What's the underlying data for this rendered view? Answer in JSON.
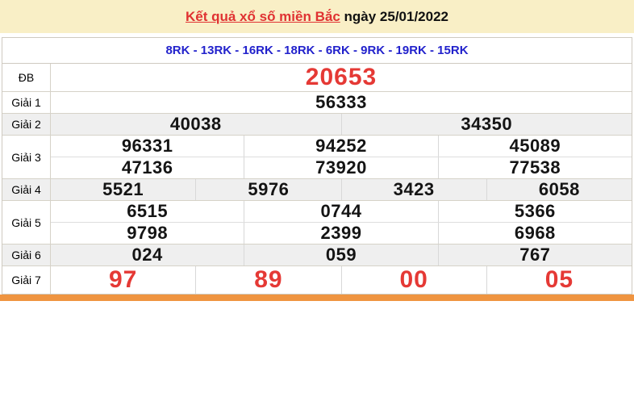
{
  "page": {
    "accent_bar_color": "#ef9440",
    "background": "#ffffff"
  },
  "header": {
    "title_link": "Kết quả xổ số miền Bắc",
    "date_text": " ngày 25/01/2022",
    "bg": "#f9efc6",
    "link_color": "#e03232"
  },
  "draw_codes": {
    "text": "8RK - 13RK - 16RK - 18RK - 6RK - 9RK - 19RK - 15RK",
    "color": "#2222cc"
  },
  "table": {
    "highlight_color": "#e53935",
    "shaded_row_bg": "#efefef",
    "rows": [
      {
        "id": "db",
        "label": "ĐB",
        "style": "special",
        "shaded": false,
        "groups": [
          [
            "20653"
          ]
        ]
      },
      {
        "id": "g1",
        "label": "Giải 1",
        "style": "normal",
        "shaded": false,
        "groups": [
          [
            "56333"
          ]
        ]
      },
      {
        "id": "g2",
        "label": "Giải 2",
        "style": "normal",
        "shaded": true,
        "groups": [
          [
            "40038",
            "34350"
          ]
        ]
      },
      {
        "id": "g3",
        "label": "Giải 3",
        "style": "normal",
        "shaded": false,
        "groups": [
          [
            "96331",
            "94252",
            "45089"
          ],
          [
            "47136",
            "73920",
            "77538"
          ]
        ]
      },
      {
        "id": "g4",
        "label": "Giải 4",
        "style": "normal",
        "shaded": true,
        "groups": [
          [
            "5521",
            "5976",
            "3423",
            "6058"
          ]
        ]
      },
      {
        "id": "g5",
        "label": "Giải 5",
        "style": "normal",
        "shaded": false,
        "groups": [
          [
            "6515",
            "0744",
            "5366"
          ],
          [
            "9798",
            "2399",
            "6968"
          ]
        ]
      },
      {
        "id": "g6",
        "label": "Giải 6",
        "style": "normal",
        "shaded": true,
        "groups": [
          [
            "024",
            "059",
            "767"
          ]
        ]
      },
      {
        "id": "g7",
        "label": "Giải 7",
        "style": "special",
        "shaded": false,
        "groups": [
          [
            "97",
            "89",
            "00",
            "05"
          ]
        ]
      }
    ]
  }
}
